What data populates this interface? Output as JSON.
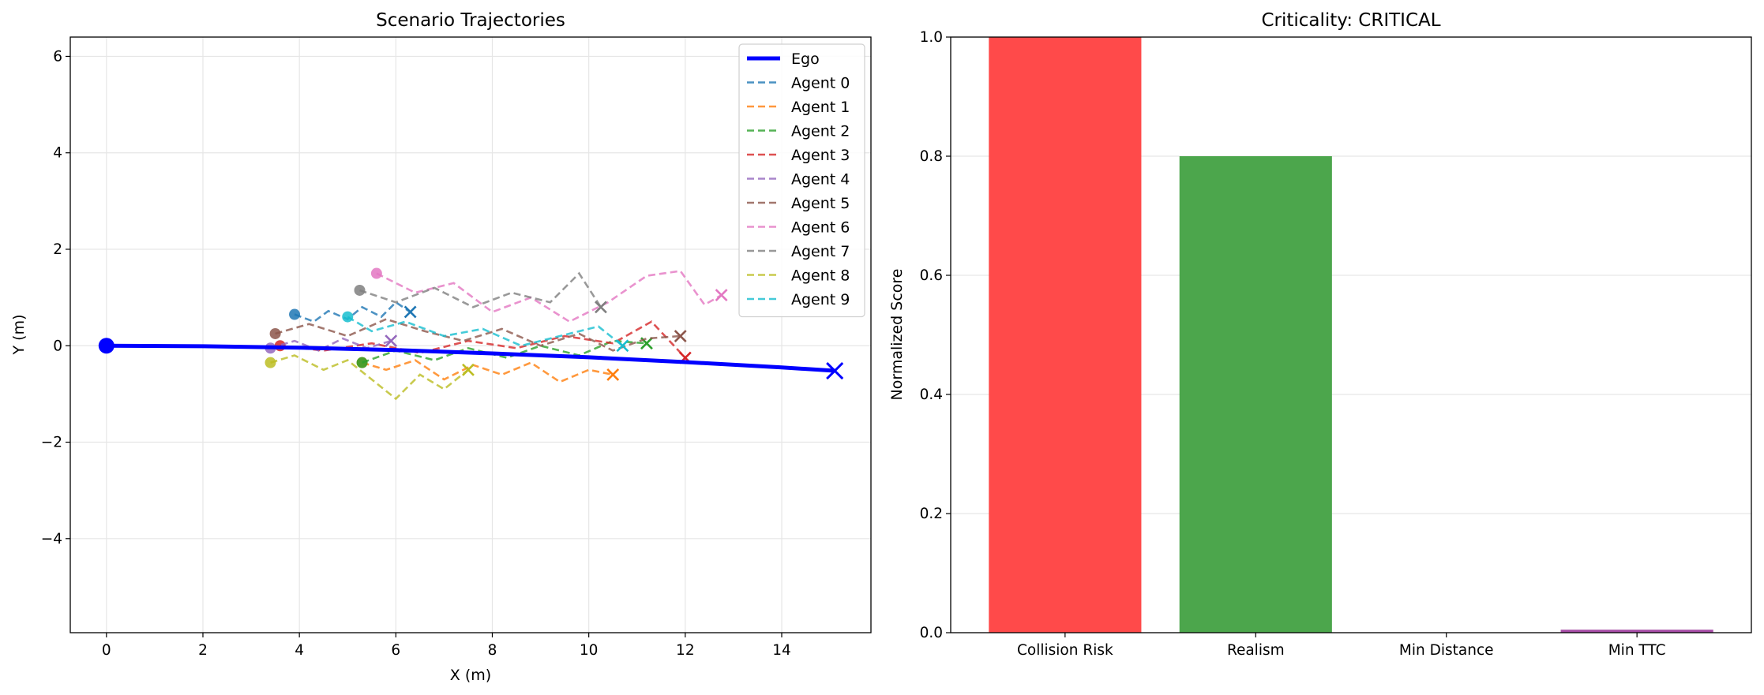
{
  "chart_data": [
    {
      "type": "line",
      "title": "Scenario Trajectories",
      "xlabel": "X (m)",
      "ylabel": "Y (m)",
      "xlim": [
        -0.75,
        15.85
      ],
      "ylim": [
        -5.95,
        6.4
      ],
      "xticks": [
        0,
        2,
        4,
        6,
        8,
        10,
        12,
        14
      ],
      "yticks": [
        -4,
        -2,
        0,
        2,
        4,
        6
      ],
      "xtick_labels": [
        "0",
        "2",
        "4",
        "6",
        "8",
        "10",
        "12",
        "14"
      ],
      "ytick_labels": [
        "−4",
        "−2",
        "0",
        "2",
        "4",
        "6"
      ],
      "grid": true,
      "legend_position": "top-right",
      "series": [
        {
          "name": "Ego",
          "color": "#0000ff",
          "style": "solid",
          "x": [
            0,
            2,
            4,
            6,
            8,
            10,
            12,
            14,
            15.1
          ],
          "y": [
            0,
            -0.01,
            -0.04,
            -0.09,
            -0.16,
            -0.24,
            -0.34,
            -0.45,
            -0.52
          ]
        },
        {
          "name": "Agent 0",
          "color": "#1f77b4",
          "style": "dashed",
          "x": [
            3.9,
            4.3,
            4.6,
            5.0,
            5.3,
            5.7,
            6.0,
            6.3
          ],
          "y": [
            0.65,
            0.5,
            0.72,
            0.55,
            0.8,
            0.6,
            0.9,
            0.7
          ]
        },
        {
          "name": "Agent 1",
          "color": "#ff7f0e",
          "style": "dashed",
          "x": [
            5.3,
            5.8,
            6.4,
            7.0,
            7.6,
            8.2,
            8.8,
            9.4,
            10.0,
            10.5
          ],
          "y": [
            -0.35,
            -0.5,
            -0.3,
            -0.7,
            -0.4,
            -0.6,
            -0.35,
            -0.75,
            -0.5,
            -0.6
          ]
        },
        {
          "name": "Agent 2",
          "color": "#2ca02c",
          "style": "dashed",
          "x": [
            5.3,
            6.0,
            6.8,
            7.5,
            8.3,
            9.0,
            9.8,
            10.5,
            11.2
          ],
          "y": [
            -0.35,
            -0.1,
            -0.3,
            -0.05,
            -0.25,
            0.0,
            -0.2,
            0.1,
            0.05
          ]
        },
        {
          "name": "Agent 3",
          "color": "#d62728",
          "style": "dashed",
          "x": [
            3.6,
            4.5,
            5.5,
            6.5,
            7.5,
            8.5,
            9.5,
            10.5,
            11.3,
            12.0
          ],
          "y": [
            0.0,
            -0.1,
            0.05,
            -0.15,
            0.1,
            -0.05,
            0.2,
            0.05,
            0.5,
            -0.25
          ]
        },
        {
          "name": "Agent 4",
          "color": "#9467bd",
          "style": "dashed",
          "x": [
            3.4,
            3.9,
            4.4,
            4.9,
            5.4,
            5.9
          ],
          "y": [
            -0.05,
            0.1,
            -0.1,
            0.15,
            -0.05,
            0.1
          ]
        },
        {
          "name": "Agent 5",
          "color": "#8c564b",
          "style": "dashed",
          "x": [
            3.5,
            4.2,
            5.0,
            5.8,
            6.6,
            7.4,
            8.2,
            9.0,
            9.8,
            10.5,
            11.2,
            11.9
          ],
          "y": [
            0.25,
            0.45,
            0.2,
            0.55,
            0.3,
            0.1,
            0.35,
            0.0,
            0.25,
            -0.1,
            0.15,
            0.2
          ]
        },
        {
          "name": "Agent 6",
          "color": "#e377c2",
          "style": "dashed",
          "x": [
            5.6,
            6.4,
            7.2,
            8.0,
            8.8,
            9.6,
            10.4,
            11.2,
            11.9,
            12.4,
            12.75
          ],
          "y": [
            1.5,
            1.1,
            1.3,
            0.7,
            1.0,
            0.5,
            0.9,
            1.45,
            1.55,
            0.85,
            1.05
          ]
        },
        {
          "name": "Agent 7",
          "color": "#7f7f7f",
          "style": "dashed",
          "x": [
            5.25,
            6.0,
            6.8,
            7.6,
            8.4,
            9.2,
            9.8,
            10.25
          ],
          "y": [
            1.15,
            0.9,
            1.2,
            0.8,
            1.1,
            0.9,
            1.5,
            0.8
          ]
        },
        {
          "name": "Agent 8",
          "color": "#bcbd22",
          "style": "dashed",
          "x": [
            3.4,
            3.9,
            4.5,
            5.0,
            5.5,
            6.0,
            6.5,
            7.0,
            7.5
          ],
          "y": [
            -0.35,
            -0.2,
            -0.5,
            -0.3,
            -0.7,
            -1.1,
            -0.6,
            -0.9,
            -0.5
          ]
        },
        {
          "name": "Agent 9",
          "color": "#17becf",
          "style": "dashed",
          "x": [
            5.0,
            5.5,
            6.2,
            7.0,
            7.8,
            8.6,
            9.4,
            10.2,
            10.7
          ],
          "y": [
            0.6,
            0.3,
            0.5,
            0.2,
            0.35,
            0.0,
            0.2,
            0.4,
            0.0
          ]
        }
      ],
      "markers": {
        "start_label": "start",
        "end_label": "end"
      }
    },
    {
      "type": "bar",
      "title": "Criticality: CRITICAL",
      "xlabel": "",
      "ylabel": "Normalized Score",
      "categories": [
        "Collision Risk",
        "Realism",
        "Min Distance",
        "Min TTC"
      ],
      "values": [
        1.0,
        0.8,
        0.0,
        0.005
      ],
      "colors": [
        "#ff4a4a",
        "#4ca64c",
        "#4a4aff",
        "#a64ca6"
      ],
      "ylim": [
        0,
        1.0
      ],
      "yticks": [
        0.0,
        0.2,
        0.4,
        0.6,
        0.8,
        1.0
      ],
      "ytick_labels": [
        "0.0",
        "0.2",
        "0.4",
        "0.6",
        "0.8",
        "1.0"
      ],
      "grid": true
    }
  ]
}
